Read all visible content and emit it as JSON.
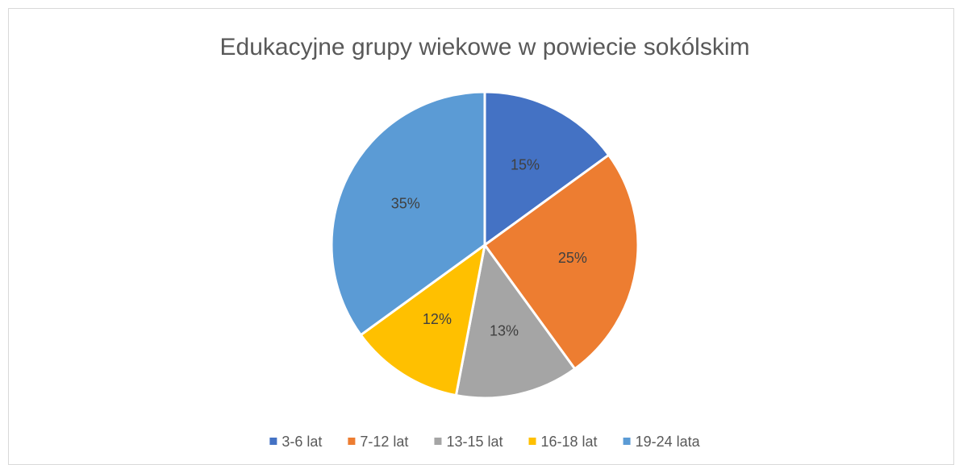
{
  "chart_data": {
    "type": "pie",
    "title": "Edukacyjne grupy wiekowe w powiecie sokólskim",
    "categories": [
      "3-6 lat",
      "7-12 lat",
      "13-15 lat",
      "16-18 lat",
      "19-24 lata"
    ],
    "values": [
      15,
      25,
      13,
      12,
      35
    ],
    "value_labels": [
      "15%",
      "25%",
      "13%",
      "12%",
      "35%"
    ],
    "colors": [
      "#4472c4",
      "#ed7d31",
      "#a5a5a5",
      "#ffc000",
      "#5b9bd5"
    ],
    "legend": "bottom"
  }
}
